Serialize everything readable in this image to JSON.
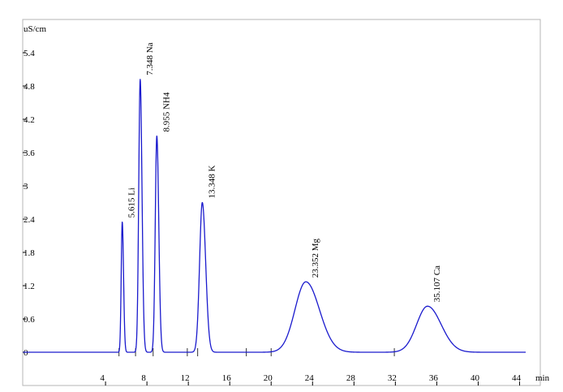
{
  "chart_data": {
    "type": "line",
    "ylabel": "uS/cm",
    "xlabel": "min",
    "xlim": [
      -4,
      46
    ],
    "ylim": [
      -0.6,
      6.0
    ],
    "x_ticks": [
      4,
      8,
      12,
      16,
      20,
      24,
      28,
      32,
      36,
      40,
      44
    ],
    "y_ticks": [
      0,
      0.6,
      1.2,
      1.8,
      2.4,
      3,
      3.6,
      4.2,
      4.8,
      5.4
    ],
    "x_tick_labels": [
      "4",
      "8",
      "12",
      "16",
      "20",
      "24",
      "28",
      "32",
      "36",
      "40",
      "44"
    ],
    "y_tick_labels": [
      "0",
      "0.6",
      "1.2",
      "1.8",
      "2.4",
      "3",
      "3.6",
      "4.2",
      "4.8",
      "5.4"
    ],
    "baseline": 0.0,
    "baseline_markers": [
      5.3,
      6.9,
      8.6,
      11.9,
      12.9,
      17.6,
      20.0,
      31.9
    ],
    "peaks": [
      {
        "time": 5.615,
        "height": 2.35,
        "width": 0.1,
        "label": "5.615 Li"
      },
      {
        "time": 7.348,
        "height": 4.92,
        "width": 0.14,
        "label": "7.348 Na"
      },
      {
        "time": 8.955,
        "height": 3.9,
        "width": 0.15,
        "label": "8.955 NH4"
      },
      {
        "time": 13.348,
        "height": 2.7,
        "width": 0.26,
        "label": "13.348 K"
      },
      {
        "time": 23.352,
        "height": 1.27,
        "width": 1.05,
        "label": "23.352 Mg"
      },
      {
        "time": 35.107,
        "height": 0.83,
        "width": 1.05,
        "label": "35.107 Ca"
      }
    ],
    "line_color": "#1a1acd"
  }
}
